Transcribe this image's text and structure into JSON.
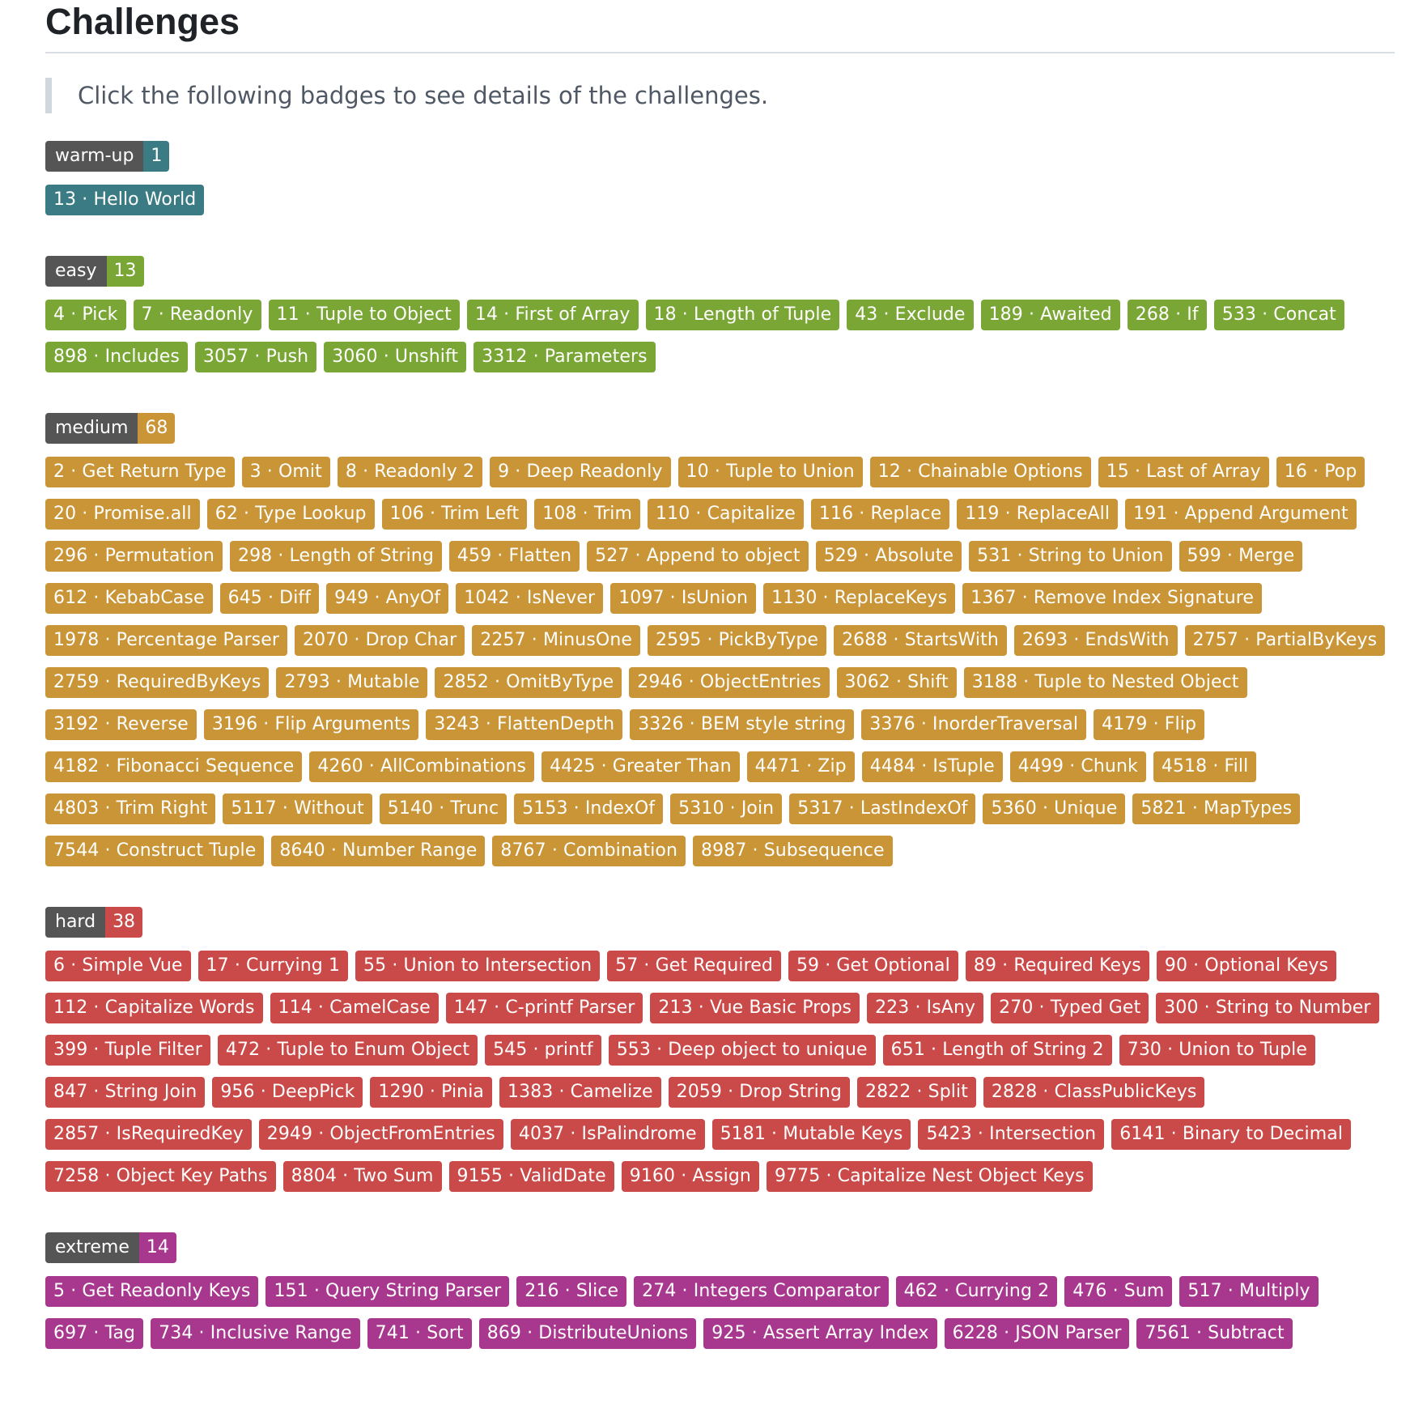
{
  "title": "Challenges",
  "intro": "Click the following badges to see details of the challenges.",
  "colors": {
    "warm-up": "#3b7b83",
    "easy": "#7aa635",
    "medium": "#c99537",
    "hard": "#c94a48",
    "extreme": "#a8388e"
  },
  "sections": [
    {
      "key": "warm-up",
      "label": "warm-up",
      "count": "1",
      "items": [
        "13 · Hello World"
      ]
    },
    {
      "key": "easy",
      "label": "easy",
      "count": "13",
      "items": [
        "4 · Pick",
        "7 · Readonly",
        "11 · Tuple to Object",
        "14 · First of Array",
        "18 · Length of Tuple",
        "43 · Exclude",
        "189 · Awaited",
        "268 · If",
        "533 · Concat",
        "898 · Includes",
        "3057 · Push",
        "3060 · Unshift",
        "3312 · Parameters"
      ]
    },
    {
      "key": "medium",
      "label": "medium",
      "count": "68",
      "items": [
        "2 · Get Return Type",
        "3 · Omit",
        "8 · Readonly 2",
        "9 · Deep Readonly",
        "10 · Tuple to Union",
        "12 · Chainable Options",
        "15 · Last of Array",
        "16 · Pop",
        "20 · Promise.all",
        "62 · Type Lookup",
        "106 · Trim Left",
        "108 · Trim",
        "110 · Capitalize",
        "116 · Replace",
        "119 · ReplaceAll",
        "191 · Append Argument",
        "296 · Permutation",
        "298 · Length of String",
        "459 · Flatten",
        "527 · Append to object",
        "529 · Absolute",
        "531 · String to Union",
        "599 · Merge",
        "612 · KebabCase",
        "645 · Diff",
        "949 · AnyOf",
        "1042 · IsNever",
        "1097 · IsUnion",
        "1130 · ReplaceKeys",
        "1367 · Remove Index Signature",
        "1978 · Percentage Parser",
        "2070 · Drop Char",
        "2257 · MinusOne",
        "2595 · PickByType",
        "2688 · StartsWith",
        "2693 · EndsWith",
        "2757 · PartialByKeys",
        "2759 · RequiredByKeys",
        "2793 · Mutable",
        "2852 · OmitByType",
        "2946 · ObjectEntries",
        "3062 · Shift",
        "3188 · Tuple to Nested Object",
        "3192 · Reverse",
        "3196 · Flip Arguments",
        "3243 · FlattenDepth",
        "3326 · BEM style string",
        "3376 · InorderTraversal",
        "4179 · Flip",
        "4182 · Fibonacci Sequence",
        "4260 · AllCombinations",
        "4425 · Greater Than",
        "4471 · Zip",
        "4484 · IsTuple",
        "4499 · Chunk",
        "4518 · Fill",
        "4803 · Trim Right",
        "5117 · Without",
        "5140 · Trunc",
        "5153 · IndexOf",
        "5310 · Join",
        "5317 · LastIndexOf",
        "5360 · Unique",
        "5821 · MapTypes",
        "7544 · Construct Tuple",
        "8640 · Number Range",
        "8767 · Combination",
        "8987 · Subsequence"
      ]
    },
    {
      "key": "hard",
      "label": "hard",
      "count": "38",
      "items": [
        "6 · Simple Vue",
        "17 · Currying 1",
        "55 · Union to Intersection",
        "57 · Get Required",
        "59 · Get Optional",
        "89 · Required Keys",
        "90 · Optional Keys",
        "112 · Capitalize Words",
        "114 · CamelCase",
        "147 · C-printf Parser",
        "213 · Vue Basic Props",
        "223 · IsAny",
        "270 · Typed Get",
        "300 · String to Number",
        "399 · Tuple Filter",
        "472 · Tuple to Enum Object",
        "545 · printf",
        "553 · Deep object to unique",
        "651 · Length of String 2",
        "730 · Union to Tuple",
        "847 · String Join",
        "956 · DeepPick",
        "1290 · Pinia",
        "1383 · Camelize",
        "2059 · Drop String",
        "2822 · Split",
        "2828 · ClassPublicKeys",
        "2857 · IsRequiredKey",
        "2949 · ObjectFromEntries",
        "4037 · IsPalindrome",
        "5181 · Mutable Keys",
        "5423 · Intersection",
        "6141 · Binary to Decimal",
        "7258 · Object Key Paths",
        "8804 · Two Sum",
        "9155 · ValidDate",
        "9160 · Assign",
        "9775 · Capitalize Nest Object Keys"
      ]
    },
    {
      "key": "extreme",
      "label": "extreme",
      "count": "14",
      "items": [
        "5 · Get Readonly Keys",
        "151 · Query String Parser",
        "216 · Slice",
        "274 · Integers Comparator",
        "462 · Currying 2",
        "476 · Sum",
        "517 · Multiply",
        "697 · Tag",
        "734 · Inclusive Range",
        "741 · Sort",
        "869 · DistributeUnions",
        "925 · Assert Array Index",
        "6228 · JSON Parser",
        "7561 · Subtract"
      ]
    }
  ]
}
